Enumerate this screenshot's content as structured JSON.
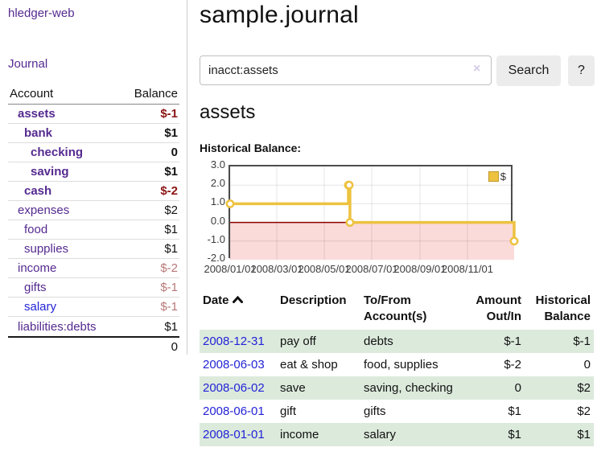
{
  "colors": {
    "accent_purple": "#552a90",
    "link_blue": "#2323d6",
    "neg_red": "#8b1a1a",
    "faded_red": "#b97777",
    "row_green": "#dceadc",
    "chart_yellow": "#edc240",
    "chart_neg_fill": "#fbdada",
    "chart_zero_line": "#8b0000"
  },
  "sidebar": {
    "app_link": "hledger-web",
    "journal_link": "Journal",
    "account_header": "Account",
    "balance_header": "Balance",
    "accounts": [
      {
        "name": "assets",
        "balance": "$-1",
        "depth": 0,
        "bold": true,
        "bal_class": "strongneg",
        "link_color": "purple"
      },
      {
        "name": "bank",
        "balance": "$1",
        "depth": 1,
        "bold": true,
        "bal_class": "",
        "link_color": "purple"
      },
      {
        "name": "checking",
        "balance": "0",
        "depth": 2,
        "bold": true,
        "bal_class": "",
        "link_color": "purple"
      },
      {
        "name": "saving",
        "balance": "$1",
        "depth": 2,
        "bold": true,
        "bal_class": "",
        "link_color": "purple"
      },
      {
        "name": "cash",
        "balance": "$-2",
        "depth": 1,
        "bold": true,
        "bal_class": "strongneg",
        "link_color": "purple"
      },
      {
        "name": "expenses",
        "balance": "$2",
        "depth": 0,
        "bold": false,
        "bal_class": "",
        "link_color": "purple"
      },
      {
        "name": "food",
        "balance": "$1",
        "depth": 1,
        "bold": false,
        "bal_class": "",
        "link_color": "purple"
      },
      {
        "name": "supplies",
        "balance": "$1",
        "depth": 1,
        "bold": false,
        "bal_class": "",
        "link_color": "purple"
      },
      {
        "name": "income",
        "balance": "$-2",
        "depth": 0,
        "bold": false,
        "bal_class": "fadedneg",
        "link_color": "purple"
      },
      {
        "name": "gifts",
        "balance": "$-1",
        "depth": 1,
        "bold": false,
        "bal_class": "fadedneg",
        "link_color": "purple"
      },
      {
        "name": "salary",
        "balance": "$-1",
        "depth": 1,
        "bold": false,
        "bal_class": "fadedneg",
        "link_color": "blue"
      },
      {
        "name": "liabilities:debts",
        "balance": "$1",
        "depth": 0,
        "bold": false,
        "bal_class": "",
        "link_color": "purple"
      }
    ],
    "total": "0"
  },
  "header": {
    "title": "sample.journal"
  },
  "search": {
    "value": "inacct:assets",
    "clear_icon": "×",
    "button_label": "Search",
    "help_label": "?"
  },
  "account_page": {
    "heading": "assets",
    "chart_label": "Historical Balance:"
  },
  "chart_data": {
    "type": "line",
    "step": true,
    "title": "Historical Balance:",
    "legend": "$",
    "legend_position": "top-right",
    "grid": true,
    "xlim": [
      "2008-01-01",
      "2008-12-31"
    ],
    "ylim": [
      -2,
      3
    ],
    "y_ticks": [
      3.0,
      2.0,
      1.0,
      0.0,
      -1.0,
      -2.0
    ],
    "x_ticks": [
      "2008/01/01",
      "2008/03/01",
      "2008/05/01",
      "2008/07/01",
      "2008/09/01",
      "2008/11/01"
    ],
    "series": [
      {
        "name": "$",
        "color": "#edc240",
        "points": [
          [
            "2008-01-01",
            1
          ],
          [
            "2008-06-01",
            2
          ],
          [
            "2008-06-02",
            2
          ],
          [
            "2008-06-03",
            0
          ],
          [
            "2008-12-31",
            -1
          ]
        ]
      }
    ],
    "negative_region_shaded": true
  },
  "register": {
    "columns": {
      "date": "Date",
      "description": "Description",
      "accounts": "To/From Account(s)",
      "amount": "Amount Out/In",
      "balance": "Historical Balance"
    },
    "rows": [
      {
        "date": "2008-12-31",
        "description": "pay off",
        "accounts": "debts",
        "amount": "$-1",
        "balance": "$-1",
        "amount_neg": true,
        "balance_neg": true,
        "green": true
      },
      {
        "date": "2008-06-03",
        "description": "eat & shop",
        "accounts": "food, supplies",
        "amount": "$-2",
        "balance": "0",
        "amount_neg": true,
        "balance_neg": false,
        "green": false
      },
      {
        "date": "2008-06-02",
        "description": "save",
        "accounts": "saving, checking",
        "amount": "0",
        "balance": "$2",
        "amount_neg": false,
        "balance_neg": false,
        "green": true
      },
      {
        "date": "2008-06-01",
        "description": "gift",
        "accounts": "gifts",
        "amount": "$1",
        "balance": "$2",
        "amount_neg": false,
        "balance_neg": false,
        "green": false
      },
      {
        "date": "2008-01-01",
        "description": "income",
        "accounts": "salary",
        "amount": "$1",
        "balance": "$1",
        "amount_neg": false,
        "balance_neg": false,
        "green": true
      }
    ]
  }
}
